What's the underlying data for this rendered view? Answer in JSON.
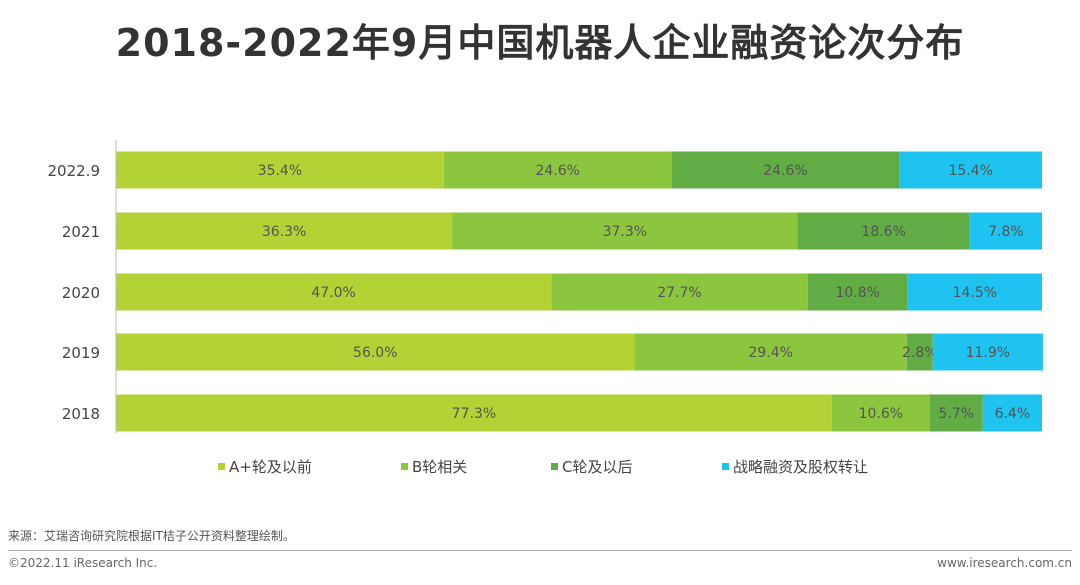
{
  "chart_data": {
    "type": "bar",
    "orientation": "horizontal",
    "stacked": "percent",
    "title": "2018-2022年9月中国机器人企业融资论次分布",
    "categories": [
      "2022.9",
      "2021",
      "2020",
      "2019",
      "2018"
    ],
    "series": [
      {
        "name": "A+轮及以前",
        "color": "#b2d235",
        "values": [
          35.4,
          36.3,
          47.0,
          56.0,
          77.3
        ],
        "labels": [
          "35.4%",
          "36.3%",
          "47.0%",
          "56.0%",
          "77.3%"
        ]
      },
      {
        "name": "B轮相关",
        "color": "#8cc63f",
        "values": [
          24.6,
          37.3,
          27.7,
          29.4,
          10.6
        ],
        "labels": [
          "24.6%",
          "37.3%",
          "27.7%",
          "29.4%",
          "10.6%"
        ]
      },
      {
        "name": "C轮及以后",
        "color": "#62ac45",
        "values": [
          24.6,
          18.6,
          10.8,
          2.8,
          5.7
        ],
        "labels": [
          "24.6%",
          "18.6%",
          "10.8%",
          "2.8%",
          "5.7%"
        ]
      },
      {
        "name": "战略融资及股权转让",
        "color": "#1ec3f0",
        "values": [
          15.4,
          7.8,
          14.5,
          11.9,
          6.4
        ],
        "labels": [
          "15.4%",
          "7.8%",
          "14.5%",
          "11.9%",
          "6.4%"
        ]
      }
    ],
    "xlim": [
      0,
      100
    ],
    "grid": false,
    "legend": "bottom"
  },
  "footer": {
    "source": "来源：艾瑞咨询研究院根据IT桔子公开资料整理绘制。",
    "copyright": "©2022.11 iResearch Inc.",
    "website": "www.iresearch.com.cn"
  }
}
